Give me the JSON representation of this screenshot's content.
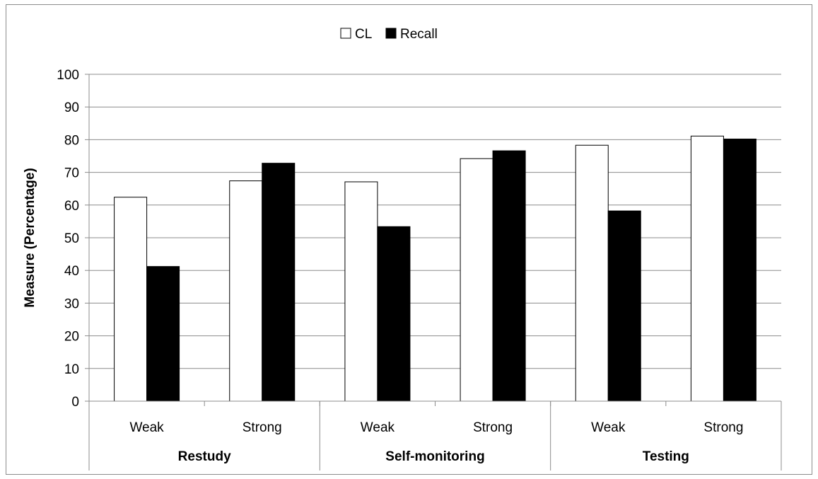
{
  "chart_data": {
    "type": "bar",
    "title": "",
    "ylabel": "Measure (Percentage)",
    "xlabel": "",
    "ylim": [
      0,
      100
    ],
    "yticks": [
      0,
      10,
      20,
      30,
      40,
      50,
      60,
      70,
      80,
      90,
      100
    ],
    "grid": true,
    "legend_position": "top-center",
    "categories": [
      "Weak",
      "Strong",
      "Weak",
      "Strong",
      "Weak",
      "Strong"
    ],
    "groups": [
      {
        "label": "Restudy",
        "span": [
          0,
          1
        ]
      },
      {
        "label": "Self-monitoring",
        "span": [
          2,
          3
        ]
      },
      {
        "label": "Testing",
        "span": [
          4,
          5
        ]
      }
    ],
    "series": [
      {
        "name": "CL",
        "color": "#ffffff",
        "values": [
          62.4,
          67.4,
          67.1,
          74.2,
          78.3,
          81.1
        ]
      },
      {
        "name": "Recall",
        "color": "#000000",
        "values": [
          41.2,
          72.8,
          53.4,
          76.6,
          58.2,
          80.2
        ]
      }
    ]
  }
}
